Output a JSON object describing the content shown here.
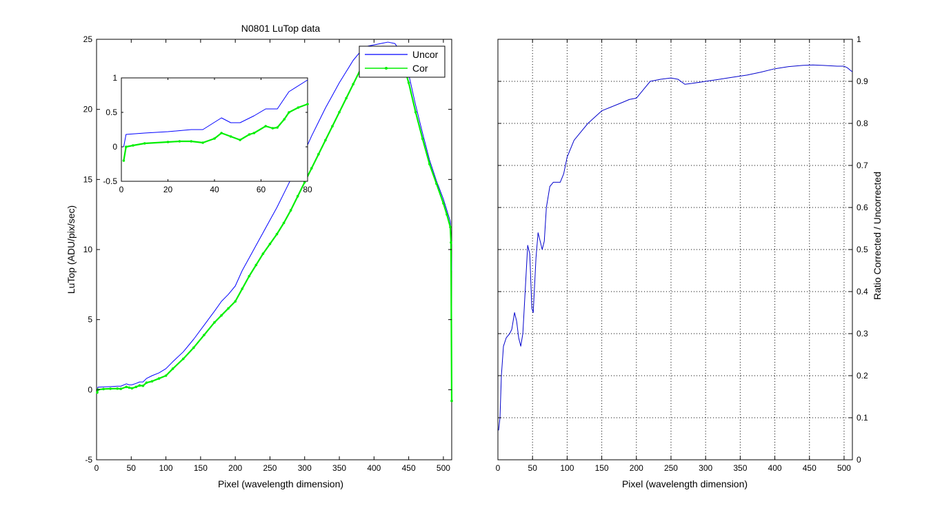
{
  "colors": {
    "uncorrected": "#0000ff",
    "corrected": "#00ee00",
    "ratio": "#0000cc",
    "axis": "#000000",
    "grid": "#000000",
    "background": "#ffffff"
  },
  "chart_data": [
    {
      "id": "left-main",
      "type": "line",
      "title": "N0801   LuTop data",
      "xlabel": "Pixel (wavelength dimension)",
      "ylabel": "LuTop (ADU/pix/sec)",
      "xlim": [
        0,
        512
      ],
      "ylim": [
        -5,
        25
      ],
      "xticks": [
        0,
        50,
        100,
        150,
        200,
        250,
        300,
        350,
        400,
        450,
        500
      ],
      "yticks": [
        -5,
        0,
        5,
        10,
        15,
        20,
        25
      ],
      "grid": false,
      "legend": {
        "placement": "top-right",
        "entries": [
          "Uncor",
          "Cor"
        ]
      },
      "series": [
        {
          "name": "Uncor",
          "color": "#0000ff",
          "marker": "none",
          "points": [
            [
              1,
              0.0
            ],
            [
              2,
              0.18
            ],
            [
              10,
              0.2
            ],
            [
              20,
              0.22
            ],
            [
              30,
              0.25
            ],
            [
              35,
              0.25
            ],
            [
              43,
              0.42
            ],
            [
              47,
              0.35
            ],
            [
              51,
              0.35
            ],
            [
              57,
              0.45
            ],
            [
              62,
              0.55
            ],
            [
              67,
              0.55
            ],
            [
              72,
              0.8
            ],
            [
              80,
              1.0
            ],
            [
              90,
              1.2
            ],
            [
              100,
              1.5
            ],
            [
              110,
              2.0
            ],
            [
              125,
              2.7
            ],
            [
              140,
              3.6
            ],
            [
              155,
              4.6
            ],
            [
              170,
              5.6
            ],
            [
              180,
              6.3
            ],
            [
              190,
              6.8
            ],
            [
              200,
              7.4
            ],
            [
              210,
              8.5
            ],
            [
              220,
              9.4
            ],
            [
              230,
              10.3
            ],
            [
              240,
              11.2
            ],
            [
              250,
              12.1
            ],
            [
              260,
              13.0
            ],
            [
              270,
              14.0
            ],
            [
              280,
              15.0
            ],
            [
              290,
              16.0
            ],
            [
              300,
              17.0
            ],
            [
              310,
              18.1
            ],
            [
              320,
              19.1
            ],
            [
              330,
              20.1
            ],
            [
              340,
              21.0
            ],
            [
              350,
              21.9
            ],
            [
              360,
              22.7
            ],
            [
              370,
              23.5
            ],
            [
              380,
              24.1
            ],
            [
              390,
              24.5
            ],
            [
              400,
              24.6
            ],
            [
              410,
              24.7
            ],
            [
              420,
              24.8
            ],
            [
              430,
              24.7
            ],
            [
              440,
              24.0
            ],
            [
              450,
              22.5
            ],
            [
              460,
              20.3
            ],
            [
              470,
              18.3
            ],
            [
              480,
              16.4
            ],
            [
              490,
              14.9
            ],
            [
              500,
              13.6
            ],
            [
              505,
              12.8
            ],
            [
              510,
              12.0
            ],
            [
              511,
              11.0
            ],
            [
              512,
              8.5
            ]
          ]
        },
        {
          "name": "Cor",
          "color": "#00ee00",
          "marker": "dot",
          "points": [
            [
              1,
              -0.2
            ],
            [
              2,
              0.0
            ],
            [
              10,
              0.05
            ],
            [
              20,
              0.07
            ],
            [
              30,
              0.08
            ],
            [
              35,
              0.06
            ],
            [
              43,
              0.2
            ],
            [
              47,
              0.15
            ],
            [
              51,
              0.1
            ],
            [
              57,
              0.2
            ],
            [
              62,
              0.3
            ],
            [
              67,
              0.28
            ],
            [
              72,
              0.5
            ],
            [
              80,
              0.6
            ],
            [
              90,
              0.8
            ],
            [
              100,
              1.0
            ],
            [
              110,
              1.5
            ],
            [
              125,
              2.2
            ],
            [
              140,
              3.0
            ],
            [
              155,
              3.9
            ],
            [
              170,
              4.8
            ],
            [
              180,
              5.3
            ],
            [
              190,
              5.8
            ],
            [
              200,
              6.3
            ],
            [
              210,
              7.2
            ],
            [
              220,
              8.1
            ],
            [
              230,
              8.9
            ],
            [
              240,
              9.7
            ],
            [
              250,
              10.4
            ],
            [
              260,
              11.1
            ],
            [
              270,
              11.9
            ],
            [
              280,
              12.8
            ],
            [
              290,
              13.8
            ],
            [
              300,
              14.8
            ],
            [
              310,
              15.8
            ],
            [
              320,
              16.8
            ],
            [
              330,
              17.8
            ],
            [
              340,
              18.8
            ],
            [
              350,
              19.8
            ],
            [
              360,
              20.8
            ],
            [
              370,
              21.8
            ],
            [
              380,
              22.8
            ],
            [
              390,
              23.6
            ],
            [
              400,
              24.1
            ],
            [
              410,
              24.3
            ],
            [
              420,
              24.4
            ],
            [
              430,
              24.3
            ],
            [
              440,
              23.6
            ],
            [
              450,
              21.9
            ],
            [
              460,
              19.8
            ],
            [
              470,
              17.9
            ],
            [
              480,
              16.1
            ],
            [
              490,
              14.7
            ],
            [
              500,
              13.3
            ],
            [
              505,
              12.5
            ],
            [
              510,
              11.6
            ],
            [
              511,
              10.5
            ],
            [
              512,
              -0.8
            ]
          ]
        }
      ]
    },
    {
      "id": "left-inset",
      "type": "line",
      "title": "",
      "xlabel": "",
      "ylabel": "",
      "xlim": [
        0,
        80
      ],
      "ylim": [
        -0.5,
        1
      ],
      "xticks": [
        0,
        20,
        40,
        60,
        80
      ],
      "yticks": [
        -0.5,
        0,
        0.5,
        1
      ],
      "grid": false,
      "series": [
        {
          "name": "Uncor",
          "color": "#0000ff",
          "marker": "none",
          "points": [
            [
              1,
              0.0
            ],
            [
              2,
              0.18
            ],
            [
              10,
              0.2
            ],
            [
              20,
              0.22
            ],
            [
              30,
              0.25
            ],
            [
              35,
              0.25
            ],
            [
              43,
              0.42
            ],
            [
              47,
              0.35
            ],
            [
              51,
              0.35
            ],
            [
              57,
              0.45
            ],
            [
              62,
              0.55
            ],
            [
              67,
              0.55
            ],
            [
              72,
              0.8
            ],
            [
              80,
              0.97
            ]
          ]
        },
        {
          "name": "Cor",
          "color": "#00ee00",
          "marker": "dot",
          "points": [
            [
              1,
              -0.2
            ],
            [
              2,
              0.0
            ],
            [
              5,
              0.02
            ],
            [
              10,
              0.05
            ],
            [
              20,
              0.07
            ],
            [
              25,
              0.08
            ],
            [
              30,
              0.08
            ],
            [
              35,
              0.06
            ],
            [
              40,
              0.12
            ],
            [
              43,
              0.2
            ],
            [
              47,
              0.15
            ],
            [
              51,
              0.1
            ],
            [
              55,
              0.18
            ],
            [
              57,
              0.2
            ],
            [
              62,
              0.3
            ],
            [
              65,
              0.27
            ],
            [
              67,
              0.28
            ],
            [
              70,
              0.4
            ],
            [
              72,
              0.5
            ],
            [
              76,
              0.57
            ],
            [
              80,
              0.62
            ]
          ]
        }
      ]
    },
    {
      "id": "right-ratio",
      "type": "line",
      "title": "",
      "xlabel": "Pixel (wavelength dimension)",
      "ylabel": "Ratio Corrected / Uncorrected",
      "xlim": [
        0,
        512
      ],
      "ylim": [
        0,
        1
      ],
      "xticks": [
        0,
        50,
        100,
        150,
        200,
        250,
        300,
        350,
        400,
        450,
        500
      ],
      "yticks": [
        0,
        0.1,
        0.2,
        0.3,
        0.4,
        0.5,
        0.6,
        0.7,
        0.8,
        0.9,
        1
      ],
      "yaxis_position": "right",
      "grid": true,
      "series": [
        {
          "name": "",
          "color": "#0000cc",
          "marker": "none",
          "points": [
            [
              1,
              0.07
            ],
            [
              3,
              0.1
            ],
            [
              5,
              0.2
            ],
            [
              8,
              0.27
            ],
            [
              12,
              0.29
            ],
            [
              17,
              0.3
            ],
            [
              20,
              0.31
            ],
            [
              24,
              0.35
            ],
            [
              27,
              0.33
            ],
            [
              30,
              0.29
            ],
            [
              33,
              0.27
            ],
            [
              36,
              0.3
            ],
            [
              40,
              0.42
            ],
            [
              43,
              0.51
            ],
            [
              46,
              0.49
            ],
            [
              49,
              0.36
            ],
            [
              51,
              0.35
            ],
            [
              55,
              0.48
            ],
            [
              58,
              0.54
            ],
            [
              61,
              0.52
            ],
            [
              64,
              0.5
            ],
            [
              67,
              0.52
            ],
            [
              70,
              0.6
            ],
            [
              75,
              0.65
            ],
            [
              80,
              0.66
            ],
            [
              85,
              0.66
            ],
            [
              90,
              0.66
            ],
            [
              95,
              0.68
            ],
            [
              100,
              0.72
            ],
            [
              110,
              0.76
            ],
            [
              120,
              0.78
            ],
            [
              130,
              0.8
            ],
            [
              140,
              0.815
            ],
            [
              150,
              0.83
            ],
            [
              165,
              0.84
            ],
            [
              180,
              0.85
            ],
            [
              190,
              0.857
            ],
            [
              200,
              0.86
            ],
            [
              210,
              0.88
            ],
            [
              220,
              0.9
            ],
            [
              235,
              0.905
            ],
            [
              250,
              0.908
            ],
            [
              260,
              0.905
            ],
            [
              270,
              0.893
            ],
            [
              280,
              0.895
            ],
            [
              300,
              0.9
            ],
            [
              320,
              0.905
            ],
            [
              340,
              0.91
            ],
            [
              360,
              0.915
            ],
            [
              380,
              0.922
            ],
            [
              400,
              0.93
            ],
            [
              420,
              0.935
            ],
            [
              440,
              0.938
            ],
            [
              455,
              0.939
            ],
            [
              470,
              0.938
            ],
            [
              490,
              0.936
            ],
            [
              500,
              0.936
            ],
            [
              505,
              0.932
            ],
            [
              510,
              0.925
            ],
            [
              512,
              0.923
            ]
          ]
        }
      ]
    }
  ]
}
